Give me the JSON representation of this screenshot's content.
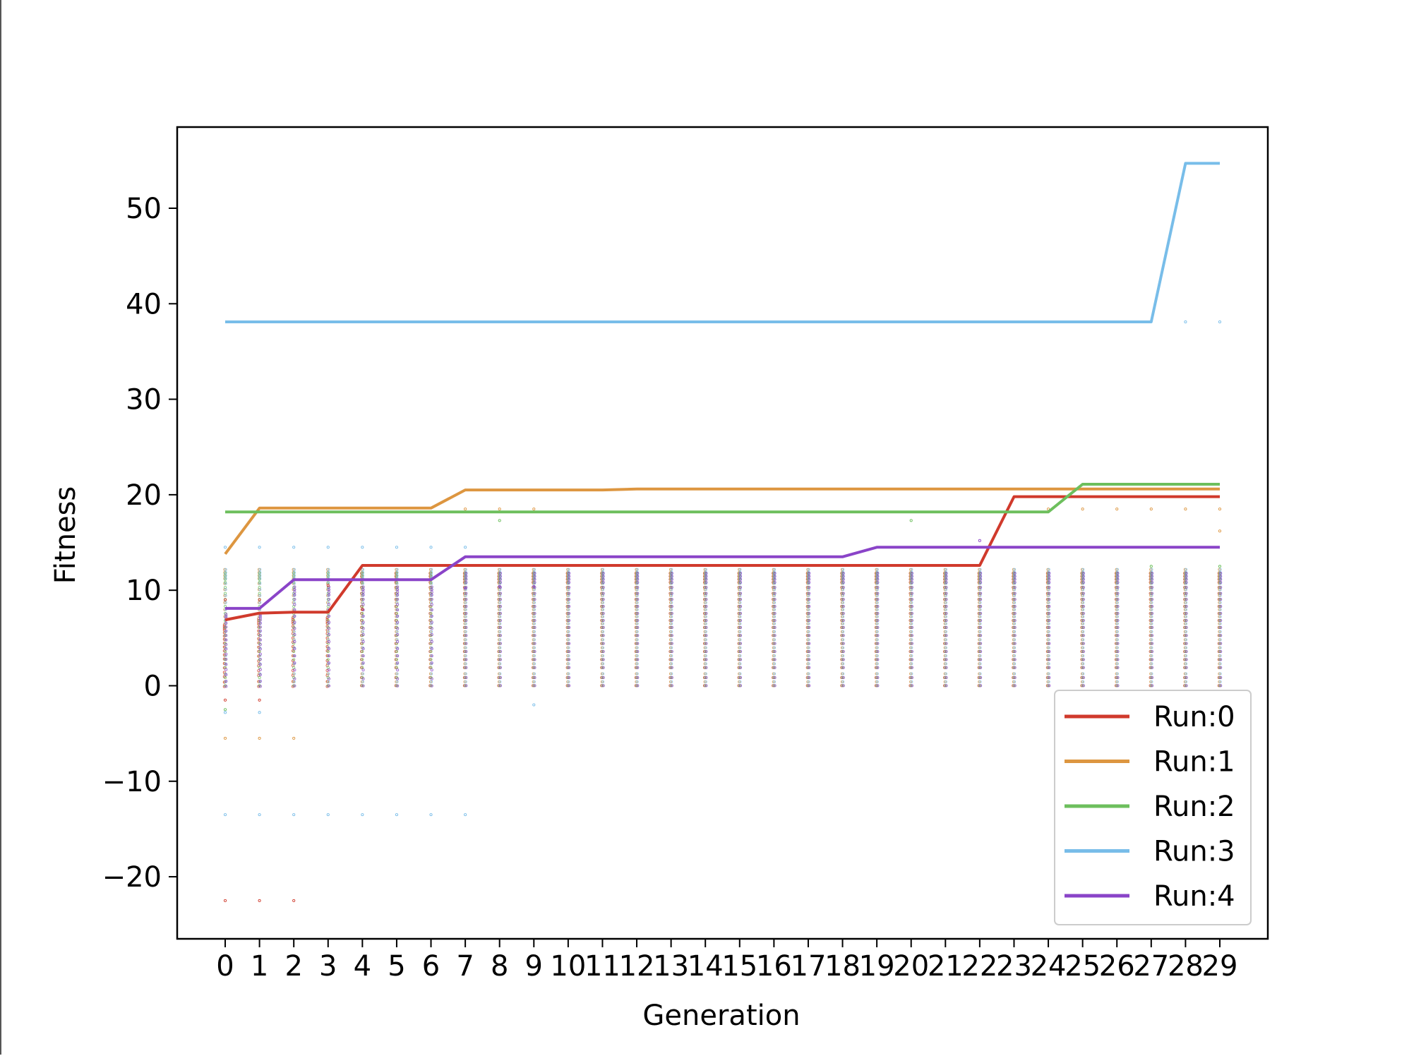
{
  "chart_data": {
    "type": "line",
    "title": "",
    "xlabel": "Generation",
    "ylabel": "Fitness",
    "x": [
      0,
      1,
      2,
      3,
      4,
      5,
      6,
      7,
      8,
      9,
      10,
      11,
      12,
      13,
      14,
      15,
      16,
      17,
      18,
      19,
      20,
      21,
      22,
      23,
      24,
      25,
      26,
      27,
      28,
      29
    ],
    "x_tick_labels": [
      "0",
      "1",
      "2",
      "3",
      "4",
      "5",
      "6",
      "7",
      "8",
      "9",
      "10",
      "11",
      "12",
      "13",
      "14",
      "15",
      "16",
      "17",
      "18",
      "19",
      "20",
      "21",
      "22",
      "23",
      "24",
      "25",
      "26",
      "27",
      "28",
      "29"
    ],
    "y_ticks": [
      -20,
      -10,
      0,
      10,
      20,
      30,
      40,
      50
    ],
    "y_tick_labels": [
      "−20",
      "−10",
      "0",
      "10",
      "20",
      "30",
      "40",
      "50"
    ],
    "xlim": [
      -1.4,
      30.4
    ],
    "ylim": [
      -26.5,
      58.5
    ],
    "grid": false,
    "legend_position": "lower-right",
    "series": [
      {
        "name": "Run:0",
        "color": "#d03a2c",
        "values": [
          6.9,
          7.6,
          7.7,
          7.7,
          12.6,
          12.6,
          12.6,
          12.6,
          12.6,
          12.6,
          12.6,
          12.6,
          12.6,
          12.6,
          12.6,
          12.6,
          12.6,
          12.6,
          12.6,
          12.6,
          12.6,
          12.6,
          12.6,
          19.8,
          19.8,
          19.8,
          19.8,
          19.8,
          19.8,
          19.8
        ]
      },
      {
        "name": "Run:1",
        "color": "#dd9640",
        "values": [
          13.8,
          18.6,
          18.6,
          18.6,
          18.6,
          18.6,
          18.6,
          20.5,
          20.5,
          20.5,
          20.5,
          20.5,
          20.6,
          20.6,
          20.6,
          20.6,
          20.6,
          20.6,
          20.6,
          20.6,
          20.6,
          20.6,
          20.6,
          20.6,
          20.6,
          20.6,
          20.6,
          20.6,
          20.6,
          20.6
        ]
      },
      {
        "name": "Run:2",
        "color": "#6dbf5d",
        "values": [
          18.2,
          18.2,
          18.2,
          18.2,
          18.2,
          18.2,
          18.2,
          18.2,
          18.2,
          18.2,
          18.2,
          18.2,
          18.2,
          18.2,
          18.2,
          18.2,
          18.2,
          18.2,
          18.2,
          18.2,
          18.2,
          18.2,
          18.2,
          18.2,
          18.2,
          21.1,
          21.1,
          21.1,
          21.1,
          21.1
        ]
      },
      {
        "name": "Run:3",
        "color": "#78bde9",
        "values": [
          38.1,
          38.1,
          38.1,
          38.1,
          38.1,
          38.1,
          38.1,
          38.1,
          38.1,
          38.1,
          38.1,
          38.1,
          38.1,
          38.1,
          38.1,
          38.1,
          38.1,
          38.1,
          38.1,
          38.1,
          38.1,
          38.1,
          38.1,
          38.1,
          38.1,
          38.1,
          38.1,
          38.1,
          54.7,
          54.7
        ]
      },
      {
        "name": "Run:4",
        "color": "#8a44c8",
        "values": [
          8.1,
          8.1,
          11.1,
          11.1,
          11.1,
          11.1,
          11.1,
          13.5,
          13.5,
          13.5,
          13.5,
          13.5,
          13.5,
          13.5,
          13.5,
          13.5,
          13.5,
          13.5,
          13.5,
          14.5,
          14.5,
          14.5,
          14.5,
          14.5,
          14.5,
          14.5,
          14.5,
          14.5,
          14.5,
          14.5
        ]
      }
    ],
    "scatter_note_series": [
      {
        "run": 0,
        "extra_points": [
          [
            0,
            -22.5
          ],
          [
            1,
            -22.5
          ],
          [
            2,
            -22.5
          ],
          [
            0,
            -1.5
          ],
          [
            1,
            -1.5
          ],
          [
            0,
            9
          ],
          [
            1,
            9
          ],
          [
            3,
            10.5
          ],
          [
            4,
            8
          ]
        ]
      },
      {
        "run": 1,
        "extra_points": [
          [
            0,
            -5.5
          ],
          [
            1,
            -5.5
          ],
          [
            2,
            -5.5
          ],
          [
            7,
            18.5
          ],
          [
            8,
            18.5
          ],
          [
            9,
            18.5
          ],
          [
            24,
            18.5
          ],
          [
            25,
            18.5
          ],
          [
            26,
            18.5
          ],
          [
            27,
            18.5
          ],
          [
            28,
            18.5
          ],
          [
            29,
            18.5
          ],
          [
            29,
            16.2
          ]
        ]
      },
      {
        "run": 2,
        "extra_points": [
          [
            0,
            -2.5
          ],
          [
            8,
            17.3
          ],
          [
            20,
            17.3
          ],
          [
            29,
            12.5
          ],
          [
            27,
            12.5
          ]
        ]
      },
      {
        "run": 3,
        "extra_points": [
          [
            0,
            -13.5
          ],
          [
            1,
            -13.5
          ],
          [
            2,
            -13.5
          ],
          [
            3,
            -13.5
          ],
          [
            4,
            -13.5
          ],
          [
            5,
            -13.5
          ],
          [
            6,
            -13.5
          ],
          [
            7,
            -13.5
          ],
          [
            0,
            14.5
          ],
          [
            1,
            14.5
          ],
          [
            2,
            14.5
          ],
          [
            3,
            14.5
          ],
          [
            4,
            14.5
          ],
          [
            5,
            14.5
          ],
          [
            6,
            14.5
          ],
          [
            7,
            14.5
          ],
          [
            28,
            38.1
          ],
          [
            29,
            38.1
          ],
          [
            0,
            -2.8
          ],
          [
            1,
            -2.8
          ],
          [
            9,
            -2
          ]
        ]
      },
      {
        "run": 4,
        "extra_points": [
          [
            7,
            10.2
          ],
          [
            8,
            10.4
          ],
          [
            9,
            10.4
          ],
          [
            22,
            15.2
          ]
        ]
      }
    ]
  }
}
